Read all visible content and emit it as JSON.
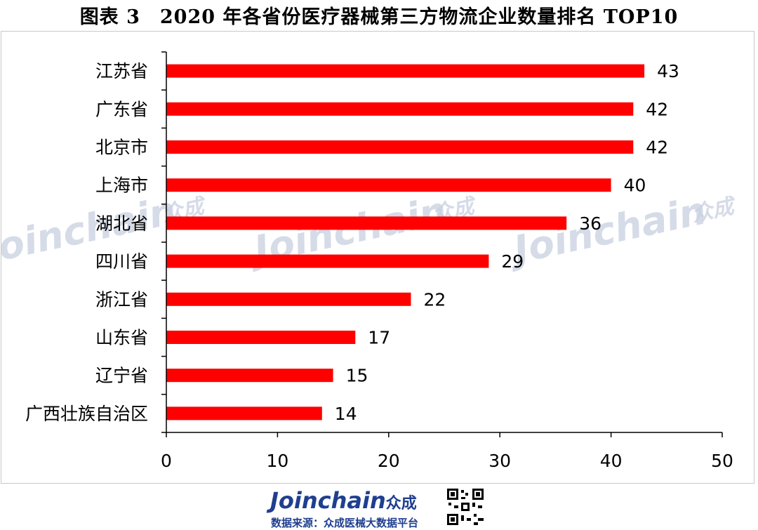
{
  "title": "图表 3　2020 年各省份医疗器械第三方物流企业数量排名 TOP10",
  "watermark": {
    "text": "Joinchain",
    "suffix": "众成"
  },
  "footer": {
    "brand": "Joinchain",
    "brand_suffix": "众成",
    "source": "数据来源：众成医械大数据平台"
  },
  "colors": {
    "bar": "#ff0000",
    "axis": "#000000"
  },
  "chart_data": {
    "type": "bar",
    "orientation": "horizontal",
    "title": "",
    "xlabel": "",
    "ylabel": "",
    "categories": [
      "江苏省",
      "广东省",
      "北京市",
      "上海市",
      "湖北省",
      "四川省",
      "浙江省",
      "山东省",
      "辽宁省",
      "广西壮族自治区"
    ],
    "values": [
      43,
      42,
      42,
      40,
      36,
      29,
      22,
      17,
      15,
      14
    ],
    "xlim": [
      0,
      50
    ],
    "xticks": [
      0,
      10,
      20,
      30,
      40,
      50
    ],
    "grid": false,
    "legend": "none",
    "data_labels": true
  }
}
